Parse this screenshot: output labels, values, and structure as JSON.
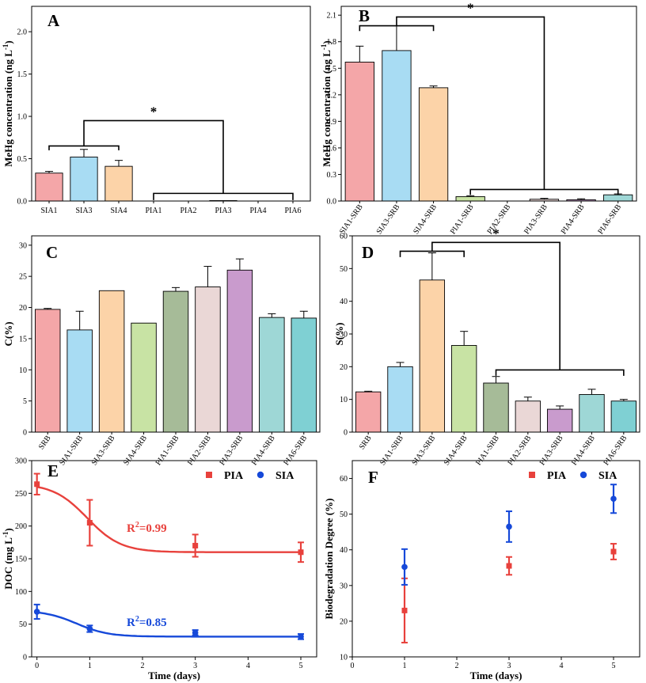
{
  "chart_data": [
    {
      "panel": "A",
      "type": "bar",
      "ylabel": "MeHg concentration (ng L",
      "ylabel_sup": "-1",
      "ylabel_close": ")",
      "ylim": [
        0,
        2.3
      ],
      "yticks": [
        0.0,
        0.5,
        1.0,
        1.5,
        2.0
      ],
      "tick_decimals": 1,
      "categories": [
        "SIA1",
        "SIA3",
        "SIA4",
        "PIA1",
        "PIA2",
        "PIA3",
        "PIA4",
        "PIA6"
      ],
      "values": [
        0.33,
        0.52,
        0.41,
        0.0,
        0.0,
        0.005,
        0.0,
        0.0
      ],
      "errors": [
        0.02,
        0.09,
        0.07,
        0.0,
        0.0,
        0.0,
        0.0,
        0.0
      ],
      "colors": [
        "#f4a6a8",
        "#a8dcf3",
        "#fcd3a8",
        "#c8e3a4",
        "#a6bb98",
        "#ead7d6",
        "#c99bcd",
        "#9ed7d6"
      ],
      "brackets": [
        {
          "from": 0,
          "to": 2,
          "y": 0.65,
          "depth": 0.05
        },
        {
          "from": 3,
          "to": 7,
          "y": 0.09,
          "depth": 0.08
        }
      ],
      "connector": {
        "cx_from": [
          0,
          2
        ],
        "cx_to": [
          3,
          7
        ],
        "y": 0.95
      },
      "star": "*"
    },
    {
      "panel": "B",
      "type": "bar",
      "ylabel": "MeHg concentration (ng L",
      "ylabel_sup": "-1",
      "ylabel_close": ")",
      "ylim": [
        0,
        2.2
      ],
      "yticks": [
        0.0,
        0.3,
        0.6,
        0.9,
        1.2,
        1.5,
        1.8,
        2.1
      ],
      "tick_decimals": 1,
      "categories": [
        "SIA1-SRB",
        "SIA3-SRB",
        "SIA4-SRB",
        "PIA1-SRB",
        "PIA2-SRB",
        "PIA3-SRB",
        "PIA4-SRB",
        "PIA6-SRB"
      ],
      "values": [
        1.57,
        1.7,
        1.28,
        0.05,
        0.0,
        0.02,
        0.015,
        0.07
      ],
      "errors": [
        0.18,
        0.28,
        0.02,
        0.01,
        0.0,
        0.01,
        0.01,
        0.01
      ],
      "colors": [
        "#f4a6a8",
        "#a8dcf3",
        "#fcd3a8",
        "#c8e3a4",
        "#a6bb98",
        "#ead7d6",
        "#c99bcd",
        "#9ed7d6"
      ],
      "brackets": [
        {
          "from": 0,
          "to": 2,
          "y": 1.98,
          "depth": 0.06
        },
        {
          "from": 3,
          "to": 7,
          "y": 0.13,
          "depth": 0.06
        }
      ],
      "connector": {
        "cx_from": [
          0,
          2
        ],
        "cx_to": [
          3,
          7
        ],
        "y": 2.08
      },
      "star": "*"
    },
    {
      "panel": "C",
      "type": "bar",
      "ylabel": "C(%)",
      "ylim": [
        0,
        31.5
      ],
      "yticks": [
        0,
        5,
        10,
        15,
        20,
        25,
        30
      ],
      "tick_decimals": 0,
      "categories": [
        "SRB",
        "SIA1-SRB",
        "SIA3-SRB",
        "SIA4-SRB",
        "PIA1-SRB",
        "PIA2-SRB",
        "PIA3-SRB",
        "PIA4-SRB",
        "PIA6-SRB"
      ],
      "values": [
        19.7,
        16.4,
        22.7,
        17.5,
        22.6,
        23.3,
        26.0,
        18.4,
        18.3
      ],
      "errors": [
        0.15,
        3.0,
        0.0,
        0.0,
        0.6,
        3.3,
        1.8,
        0.6,
        1.1
      ],
      "colors": [
        "#f4a6a8",
        "#a8dcf3",
        "#fcd3a8",
        "#c8e3a4",
        "#a6bb98",
        "#ead7d6",
        "#c99bcd",
        "#9ed7d6",
        "#7fd0d3"
      ]
    },
    {
      "panel": "D",
      "type": "bar",
      "ylabel": "S(%)",
      "ylim": [
        0,
        60
      ],
      "yticks": [
        0,
        10,
        20,
        30,
        40,
        50,
        60
      ],
      "tick_decimals": 0,
      "categories": [
        "SRB",
        "SIA1-SRB",
        "SIA3-SRB",
        "SIA4-SRB",
        "PIA1-SRB",
        "PIA2-SRB",
        "PIA3-SRB",
        "PIA4-SRB",
        "PIA6-SRB"
      ],
      "values": [
        12.3,
        20.0,
        46.5,
        26.5,
        15.0,
        9.5,
        7.0,
        11.5,
        9.5
      ],
      "errors": [
        0.2,
        1.3,
        8.3,
        4.3,
        2.0,
        1.2,
        1.0,
        1.6,
        0.5
      ],
      "colors": [
        "#f4a6a8",
        "#a8dcf3",
        "#fcd3a8",
        "#c8e3a4",
        "#a6bb98",
        "#ead7d6",
        "#c99bcd",
        "#9ed7d6",
        "#7fd0d3"
      ],
      "brackets": [
        {
          "from": 1,
          "to": 3,
          "y": 55.3,
          "depth": 1.8
        },
        {
          "from": 4,
          "to": 8,
          "y": 19.0,
          "depth": 1.8
        }
      ],
      "connector": {
        "cx_from": [
          1,
          3
        ],
        "cx_to": [
          4,
          8
        ],
        "y": 58.0
      },
      "star": "*"
    },
    {
      "panel": "E",
      "type": "scatter",
      "xlabel": "Time (days)",
      "ylabel": "DOC (mg L",
      "ylabel_sup": "-1",
      "ylabel_close": ")",
      "xlim": [
        -0.1,
        5.3
      ],
      "ylim": [
        0,
        300
      ],
      "xticks": [
        0,
        1,
        2,
        3,
        4,
        5
      ],
      "yticks": [
        0,
        50,
        100,
        150,
        200,
        250,
        300
      ],
      "series": [
        {
          "name": "PIA",
          "color": "#e8413c",
          "marker": "square",
          "x": [
            0,
            1,
            3,
            5
          ],
          "y": [
            264,
            205,
            170,
            160
          ],
          "err": [
            16,
            35,
            17,
            15
          ],
          "fit": {
            "type": "sigmoid",
            "a": 160,
            "b": 105,
            "x0": 0.95,
            "w": 0.32
          },
          "r2": "=0.99"
        },
        {
          "name": "SIA",
          "color": "#1649d9",
          "marker": "circle",
          "x": [
            0,
            1,
            3,
            5
          ],
          "y": [
            69,
            43,
            37,
            31
          ],
          "err": [
            11,
            5,
            4,
            4
          ],
          "fit": {
            "type": "sigmoid",
            "a": 31,
            "b": 40,
            "x0": 0.75,
            "w": 0.3
          },
          "r2": "=0.85"
        }
      ],
      "legend": "top-right"
    },
    {
      "panel": "F",
      "type": "scatter",
      "xlabel": "Time (days)",
      "ylabel": "Biodegradation Degree (%)",
      "xlim": [
        0,
        5.5
      ],
      "ylim": [
        10,
        65
      ],
      "xticks": [
        0,
        1,
        2,
        3,
        4,
        5
      ],
      "yticks": [
        10,
        20,
        30,
        40,
        50,
        60
      ],
      "series": [
        {
          "name": "PIA",
          "color": "#e8413c",
          "marker": "square",
          "x": [
            1,
            3,
            5
          ],
          "y": [
            23,
            35.5,
            39.5
          ],
          "err": [
            9,
            2.5,
            2.2
          ]
        },
        {
          "name": "SIA",
          "color": "#1649d9",
          "marker": "circle",
          "x": [
            1,
            3,
            5
          ],
          "y": [
            35.2,
            46.5,
            54.3
          ],
          "err": [
            5,
            4.3,
            4
          ]
        }
      ],
      "legend": "top-right"
    }
  ]
}
